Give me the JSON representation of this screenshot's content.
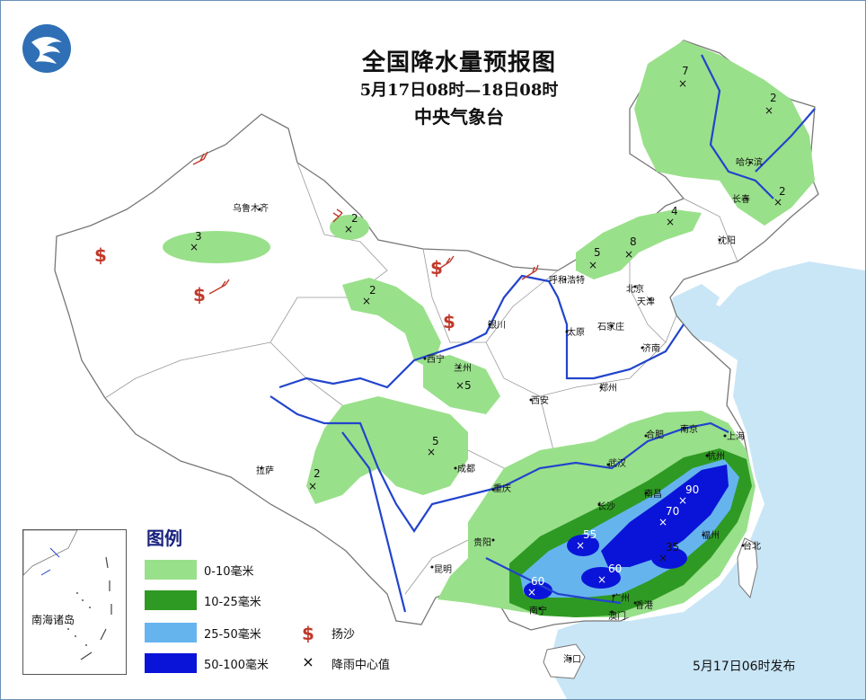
{
  "title": {
    "main": "全国降水量预报图",
    "period": "5月17日08时—18日08时",
    "issuer": "中央气象台"
  },
  "issue_time": "5月17日06时发布",
  "legend": {
    "title": "图例",
    "items": [
      {
        "label": "0-10毫米",
        "color": "#99e08a"
      },
      {
        "label": "10-25毫米",
        "color": "#2f9a23"
      },
      {
        "label": "25-50毫米",
        "color": "#66b4ee"
      },
      {
        "label": "50-100毫米",
        "color": "#0a14d8"
      }
    ],
    "symbols": [
      {
        "label": "扬沙",
        "icon": "dollar-sandstorm-icon",
        "glyph": "$",
        "color": "#c0392b"
      },
      {
        "label": "降雨中心值",
        "icon": "cross-marker-icon",
        "glyph": "×",
        "color": "#111111"
      }
    ]
  },
  "inset_label": "南海诸岛",
  "cities": [
    "乌鲁木齐",
    "哈尔滨",
    "长春",
    "沈阳",
    "呼和浩特",
    "北京",
    "天津",
    "石家庄",
    "太原",
    "银川",
    "西宁",
    "兰州",
    "济南",
    "郑州",
    "西安",
    "拉萨",
    "成都",
    "重庆",
    "合肥",
    "南京",
    "上海",
    "杭州",
    "武汉",
    "南昌",
    "长沙",
    "福州",
    "台北",
    "贵阳",
    "昆明",
    "南宁",
    "广州",
    "香港",
    "澳门",
    "海口"
  ],
  "rain_centers": [
    "7",
    "2",
    "2",
    "4",
    "8",
    "5",
    "2",
    "3",
    "2",
    "5",
    "5",
    "2",
    "90",
    "70",
    "55",
    "35",
    "60",
    "60"
  ],
  "colors": {
    "light_green": "#99e08a",
    "green": "#2f9a23",
    "light_blue": "#66b4ee",
    "dark_blue": "#0a14d8",
    "river": "#2244cc",
    "sea": "#c9e6f7",
    "border": "#888888",
    "sand": "#c0392b"
  }
}
